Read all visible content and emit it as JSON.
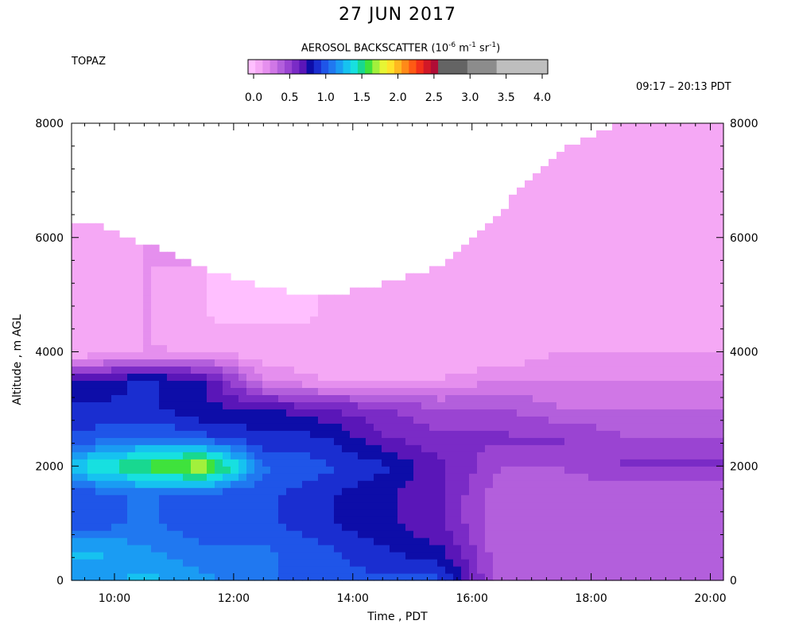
{
  "chart_data": {
    "type": "heatmap",
    "title": "27 JUN 2017",
    "site": "TOPAZ",
    "time_range": "09:17 – 20:13 PDT",
    "colorbar": {
      "label_prefix": "AEROSOL BACKSCATTER (10",
      "label_exp1": "-6",
      "label_mid": " m",
      "label_exp2": "-1",
      "label_mid2": " sr",
      "label_exp3": "-1",
      "label_suffix": ")",
      "range": [
        0.0,
        4.0
      ],
      "tick_labels": [
        "0.0",
        "0.5",
        "1.0",
        "1.5",
        "2.0",
        "2.5",
        "3.0",
        "3.5",
        "4.0"
      ],
      "colors": [
        "#ffbfff",
        "#f5a8f5",
        "#e58fee",
        "#d077e6",
        "#b35fdc",
        "#9a44d2",
        "#7a2bc6",
        "#5a16b8",
        "#0d0da8",
        "#1a2ed0",
        "#1f55e8",
        "#2078f0",
        "#1a9cf3",
        "#16c2f0",
        "#17e0e0",
        "#18d890",
        "#3fe23c",
        "#a2f03c",
        "#e7f534",
        "#ffe22a",
        "#ffb820",
        "#ff8a18",
        "#ff5a14",
        "#f3301a",
        "#d21827",
        "#b00d36",
        "#646464",
        "#646464",
        "#646464",
        "#646464",
        "#8c8c8c",
        "#8c8c8c",
        "#8c8c8c",
        "#8c8c8c",
        "#bebebe",
        "#bebebe",
        "#bebebe",
        "#bebebe",
        "#bebebe",
        "#bebebe",
        "#bebebe"
      ]
    },
    "x_axis": {
      "label": "Time , PDT",
      "range_hours": [
        9.28,
        20.22
      ],
      "ticks": [
        10,
        12,
        14,
        16,
        18,
        20
      ],
      "tick_labels": [
        "10:00",
        "12:00",
        "14:00",
        "16:00",
        "18:00",
        "20:00"
      ]
    },
    "y_axis": {
      "label": "Altitude , m AGL",
      "range": [
        0,
        8000
      ],
      "ticks": [
        0,
        2000,
        4000,
        6000,
        8000
      ],
      "tick_labels": [
        "0",
        "2000",
        "4000",
        "6000",
        "8000"
      ]
    },
    "backscatter_field": {
      "time_hours": [
        9.5,
        10.5,
        11.5,
        12.5,
        13.5,
        14.5,
        15.5,
        16.5,
        17.5,
        18.5,
        19.5
      ],
      "data_top_m": [
        6300,
        5900,
        5450,
        5150,
        4950,
        5200,
        5500,
        6500,
        7550,
        8000,
        8000
      ],
      "altitude_m": [
        0,
        500,
        1000,
        1500,
        2000,
        2500,
        3000,
        3500,
        4000,
        4500,
        5000,
        5500,
        6000,
        6500,
        7000,
        7500,
        8000
      ],
      "values": [
        [
          1.2,
          1.3,
          1.0,
          1.0,
          1.4,
          1.0,
          0.9,
          0.8,
          0.1,
          0.1,
          0.1,
          0.1,
          0.1,
          null,
          null,
          null,
          null
        ],
        [
          1.3,
          1.2,
          1.1,
          1.1,
          1.6,
          1.1,
          0.9,
          0.9,
          0.2,
          0.2,
          0.2,
          0.2,
          null,
          null,
          null,
          null,
          null
        ],
        [
          1.2,
          1.1,
          1.0,
          1.0,
          1.8,
          1.0,
          0.8,
          0.8,
          0.2,
          0.1,
          0.1,
          null,
          null,
          null,
          null,
          null,
          null
        ],
        [
          1.1,
          1.1,
          1.0,
          1.0,
          1.1,
          0.9,
          0.8,
          0.3,
          0.1,
          0.1,
          0.0,
          null,
          null,
          null,
          null,
          null,
          null
        ],
        [
          1.0,
          1.0,
          0.9,
          0.9,
          1.0,
          0.9,
          0.7,
          0.2,
          0.1,
          0.1,
          null,
          null,
          null,
          null,
          null,
          null,
          null
        ],
        [
          1.0,
          0.9,
          0.8,
          0.8,
          0.9,
          0.7,
          0.6,
          0.2,
          0.1,
          0.1,
          0.1,
          null,
          null,
          null,
          null,
          null,
          null
        ],
        [
          1.0,
          0.8,
          0.7,
          0.7,
          0.7,
          0.6,
          0.5,
          0.2,
          0.1,
          0.1,
          0.1,
          null,
          null,
          null,
          null,
          null,
          null
        ],
        [
          0.4,
          0.4,
          0.4,
          0.4,
          0.5,
          0.6,
          0.5,
          0.3,
          0.1,
          0.1,
          0.1,
          0.1,
          0.1,
          null,
          null,
          null,
          null
        ],
        [
          0.4,
          0.4,
          0.4,
          0.4,
          0.5,
          0.6,
          0.4,
          0.3,
          0.2,
          0.1,
          0.1,
          0.1,
          0.1,
          0.1,
          0.1,
          null,
          null
        ],
        [
          0.4,
          0.4,
          0.4,
          0.4,
          0.6,
          0.5,
          0.4,
          0.3,
          0.2,
          0.1,
          0.1,
          0.1,
          0.1,
          0.1,
          0.1,
          0.1,
          0.1
        ],
        [
          0.4,
          0.4,
          0.4,
          0.4,
          0.6,
          0.5,
          0.4,
          0.3,
          0.2,
          0.1,
          0.1,
          0.1,
          0.1,
          0.1,
          0.1,
          0.1,
          0.1
        ]
      ]
    }
  }
}
